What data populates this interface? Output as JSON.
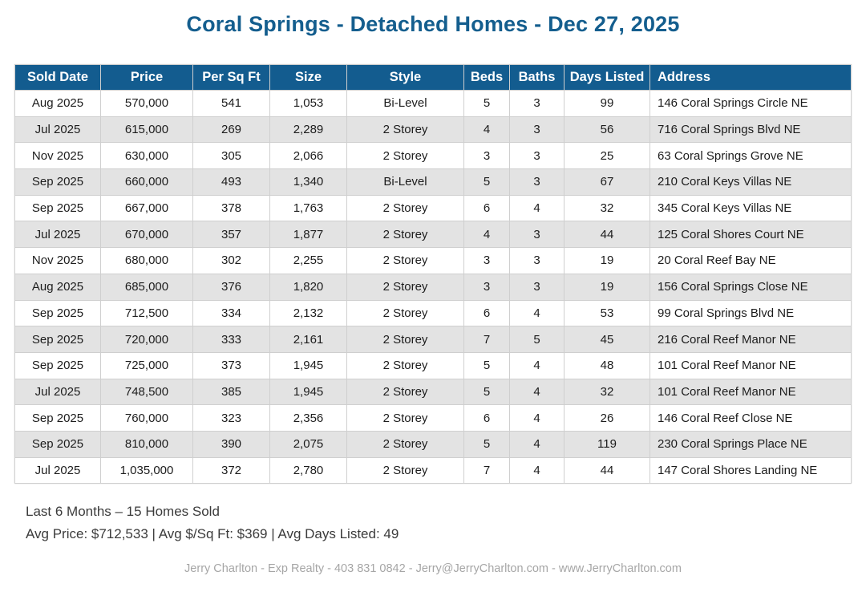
{
  "title": "Coral Springs - Detached Homes - Dec 27, 2025",
  "table": {
    "columns": [
      "Sold Date",
      "Price",
      "Per Sq Ft",
      "Size",
      "Style",
      "Beds",
      "Baths",
      "Days Listed",
      "Address"
    ],
    "rows": [
      [
        "Aug 2025",
        "570,000",
        "541",
        "1,053",
        "Bi-Level",
        "5",
        "3",
        "99",
        "146 Coral Springs Circle NE"
      ],
      [
        "Jul 2025",
        "615,000",
        "269",
        "2,289",
        "2 Storey",
        "4",
        "3",
        "56",
        "716 Coral Springs Blvd NE"
      ],
      [
        "Nov 2025",
        "630,000",
        "305",
        "2,066",
        "2 Storey",
        "3",
        "3",
        "25",
        "63 Coral Springs Grove NE"
      ],
      [
        "Sep 2025",
        "660,000",
        "493",
        "1,340",
        "Bi-Level",
        "5",
        "3",
        "67",
        "210 Coral Keys Villas NE"
      ],
      [
        "Sep 2025",
        "667,000",
        "378",
        "1,763",
        "2 Storey",
        "6",
        "4",
        "32",
        "345 Coral Keys Villas NE"
      ],
      [
        "Jul 2025",
        "670,000",
        "357",
        "1,877",
        "2 Storey",
        "4",
        "3",
        "44",
        "125 Coral Shores Court NE"
      ],
      [
        "Nov 2025",
        "680,000",
        "302",
        "2,255",
        "2 Storey",
        "3",
        "3",
        "19",
        "20 Coral Reef Bay NE"
      ],
      [
        "Aug 2025",
        "685,000",
        "376",
        "1,820",
        "2 Storey",
        "3",
        "3",
        "19",
        "156 Coral Springs Close NE"
      ],
      [
        "Sep 2025",
        "712,500",
        "334",
        "2,132",
        "2 Storey",
        "6",
        "4",
        "53",
        "99 Coral Springs Blvd NE"
      ],
      [
        "Sep 2025",
        "720,000",
        "333",
        "2,161",
        "2 Storey",
        "7",
        "5",
        "45",
        "216 Coral Reef Manor NE"
      ],
      [
        "Sep 2025",
        "725,000",
        "373",
        "1,945",
        "2 Storey",
        "5",
        "4",
        "48",
        "101 Coral Reef Manor NE"
      ],
      [
        "Jul 2025",
        "748,500",
        "385",
        "1,945",
        "2 Storey",
        "5",
        "4",
        "32",
        "101 Coral Reef Manor NE"
      ],
      [
        "Sep 2025",
        "760,000",
        "323",
        "2,356",
        "2 Storey",
        "6",
        "4",
        "26",
        "146 Coral Reef Close NE"
      ],
      [
        "Sep 2025",
        "810,000",
        "390",
        "2,075",
        "2 Storey",
        "5",
        "4",
        "119",
        "230 Coral Springs Place NE"
      ],
      [
        "Jul 2025",
        "1,035,000",
        "372",
        "2,780",
        "2 Storey",
        "7",
        "4",
        "44",
        "147 Coral Shores Landing NE"
      ]
    ]
  },
  "summary": {
    "line1": "Last 6 Months – 15 Homes Sold",
    "line2": "Avg Price: $712,533 | Avg $/Sq Ft: $369 | Avg Days Listed: 49"
  },
  "footer": {
    "contact": "Jerry Charlton - Exp Realty - 403 831 0842 - Jerry@JerryCharlton.com - www.JerryCharlton.com"
  },
  "colors": {
    "title_blue": "#145e8e",
    "header_bg": "#135c8f",
    "row_alt_gray": "#e3e3e3",
    "border_gray": "#cfcfcf",
    "contact_gray": "#a6a6a6"
  }
}
